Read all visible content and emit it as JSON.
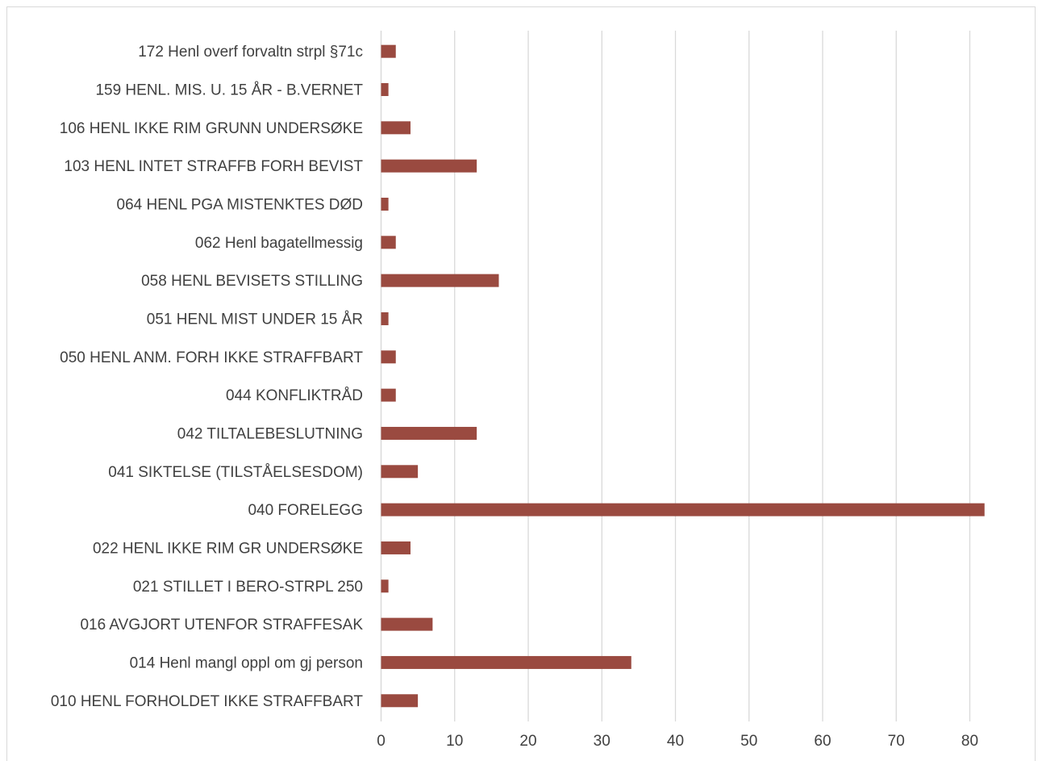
{
  "chart_data": {
    "type": "bar",
    "orientation": "horizontal",
    "title": "",
    "xlabel": "",
    "ylabel": "",
    "categories": [
      "172 Henl overf forvaltn strpl §71c",
      "159 HENL. MIS. U. 15 ÅR - B.VERNET",
      "106 HENL IKKE RIM GRUNN UNDERSØKE",
      "103 HENL INTET STRAFFB FORH BEVIST",
      "064 HENL PGA MISTENKTES DØD",
      "062 Henl bagatellmessig",
      "058 HENL BEVISETS STILLING",
      "051 HENL MIST UNDER 15 ÅR",
      "050 HENL ANM. FORH IKKE STRAFFBART",
      "044 KONFLIKTRÅD",
      "042 TILTALEBESLUTNING",
      "041 SIKTELSE (TILSTÅELSESDOM)",
      "040 FORELEGG",
      "022 HENL IKKE RIM GR UNDERSØKE",
      "021 STILLET I BERO-STRPL 250",
      "016 AVGJORT UTENFOR STRAFFESAK",
      "014 Henl mangl oppl om gj person",
      "010 HENL FORHOLDET IKKE STRAFFBART"
    ],
    "values": [
      2,
      1,
      4,
      13,
      1,
      2,
      16,
      1,
      2,
      2,
      13,
      5,
      82,
      4,
      1,
      7,
      34,
      5
    ],
    "xlim": [
      0,
      88
    ],
    "xticks": [
      "0",
      "10",
      "20",
      "30",
      "40",
      "50",
      "60",
      "70",
      "80"
    ],
    "grid": "vertical",
    "legend": "none",
    "bar_color": "#9a4a40",
    "grid_color": "#d9d9d9"
  }
}
